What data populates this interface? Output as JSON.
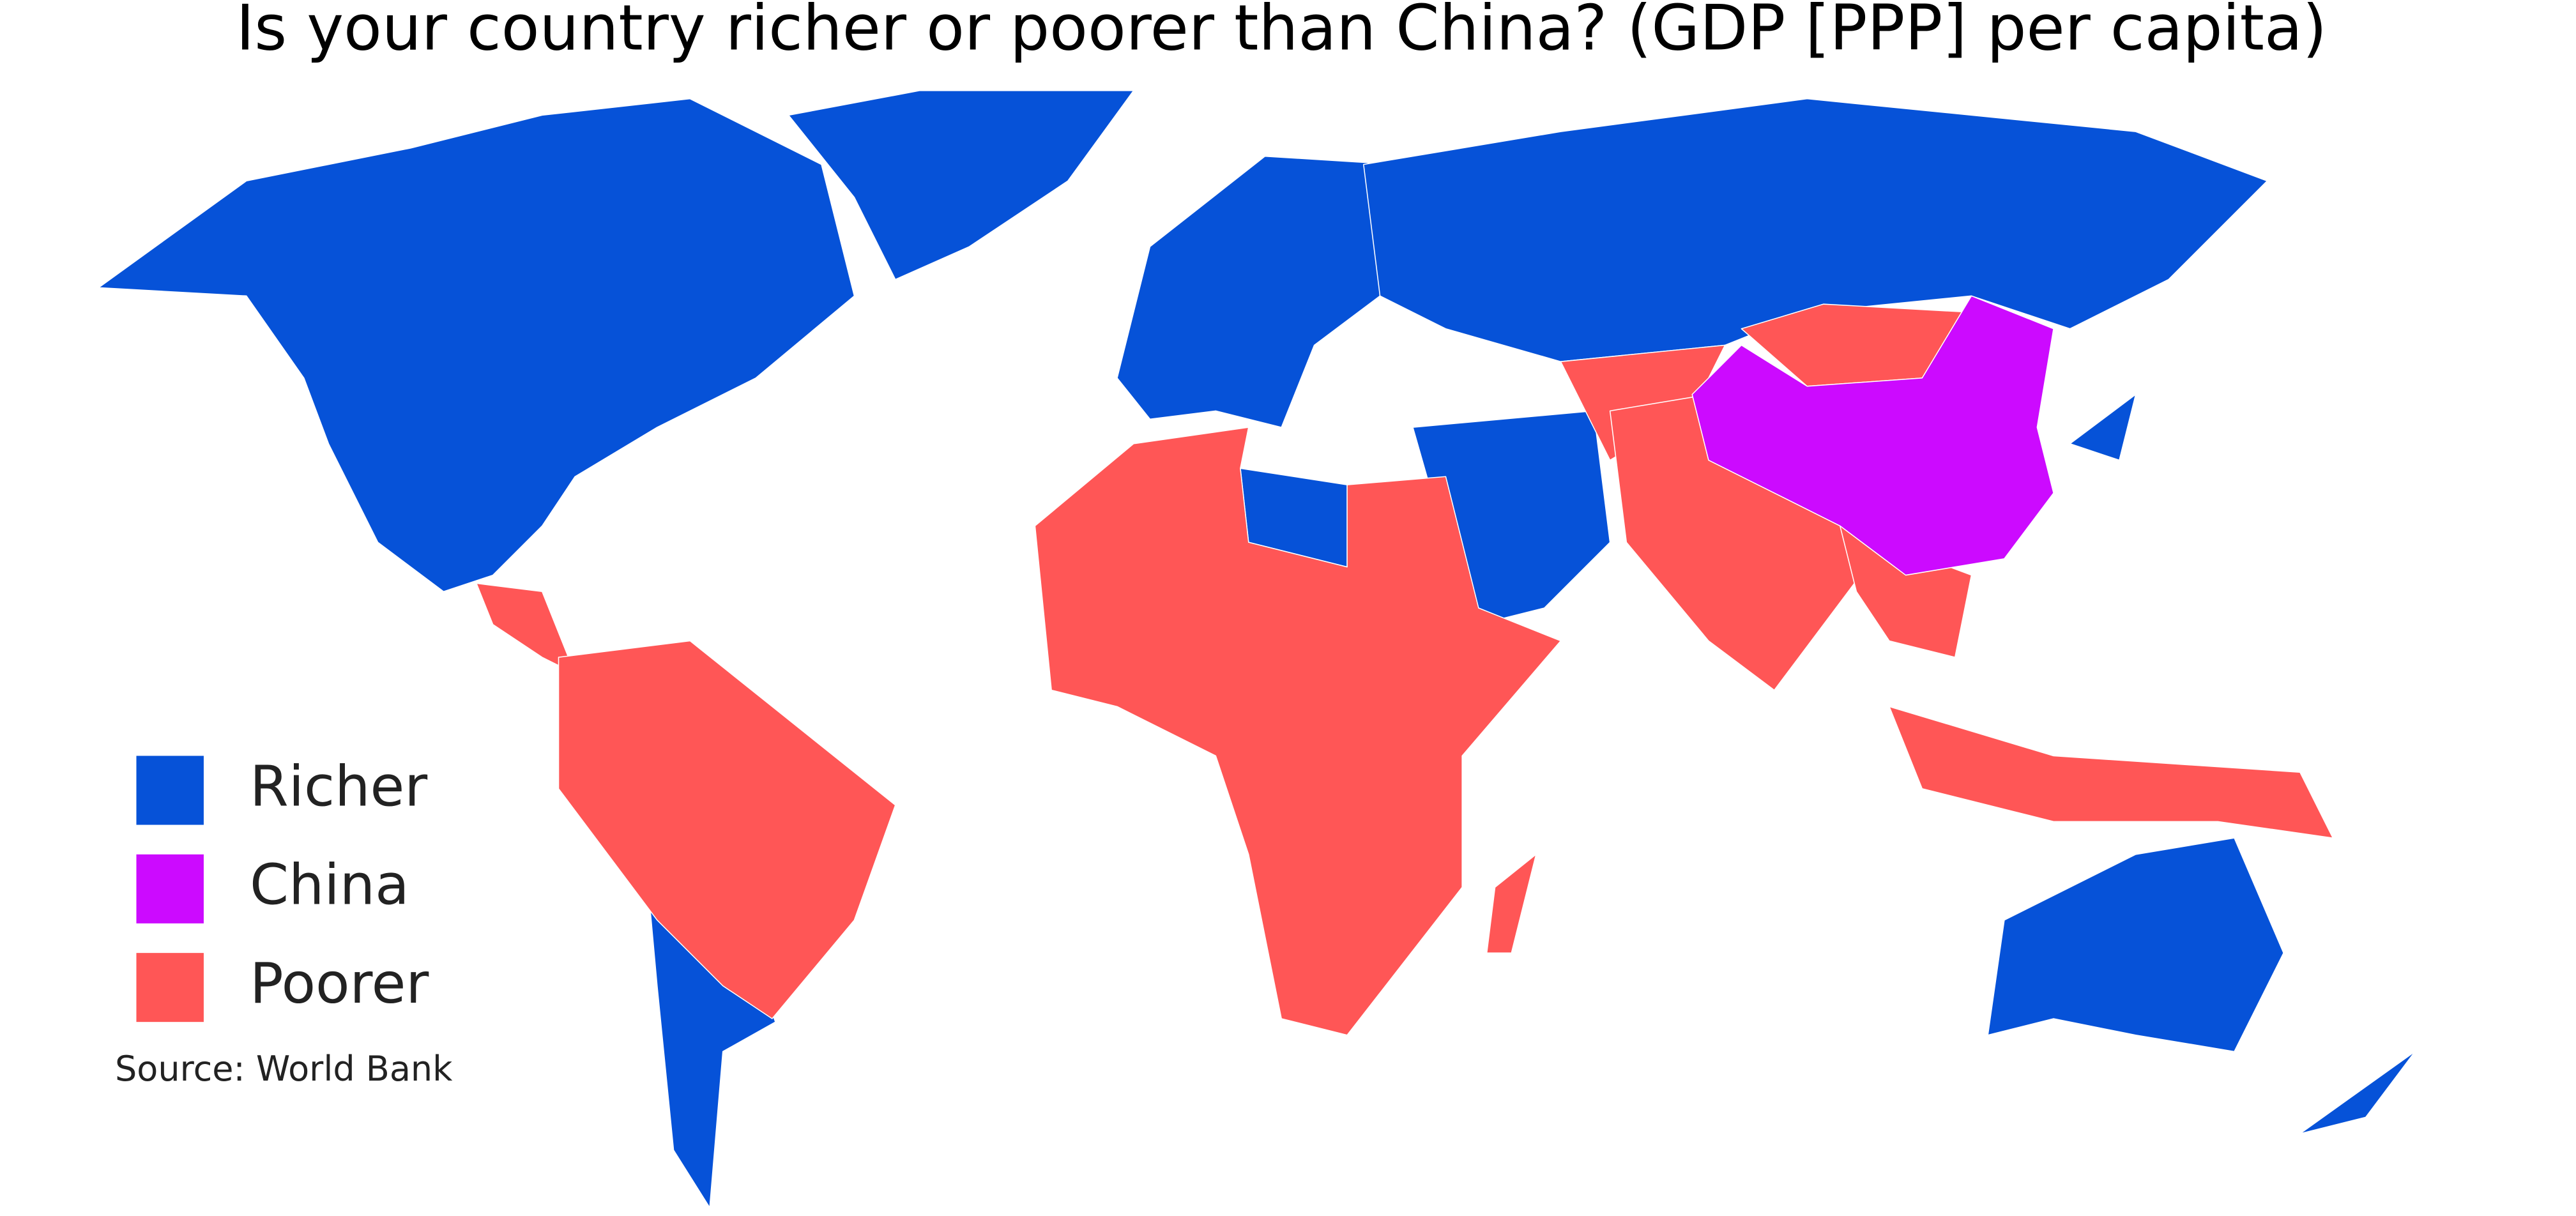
{
  "title": "Is your country richer or poorer than China? (GDP [PPP] per capita)",
  "legend": [
    {
      "label": "Richer",
      "color": "#0652d8"
    },
    {
      "label": "China",
      "color": "#cc0aff"
    },
    {
      "label": "Poorer",
      "color": "#ff5656"
    }
  ],
  "source": "Source: World Bank"
}
